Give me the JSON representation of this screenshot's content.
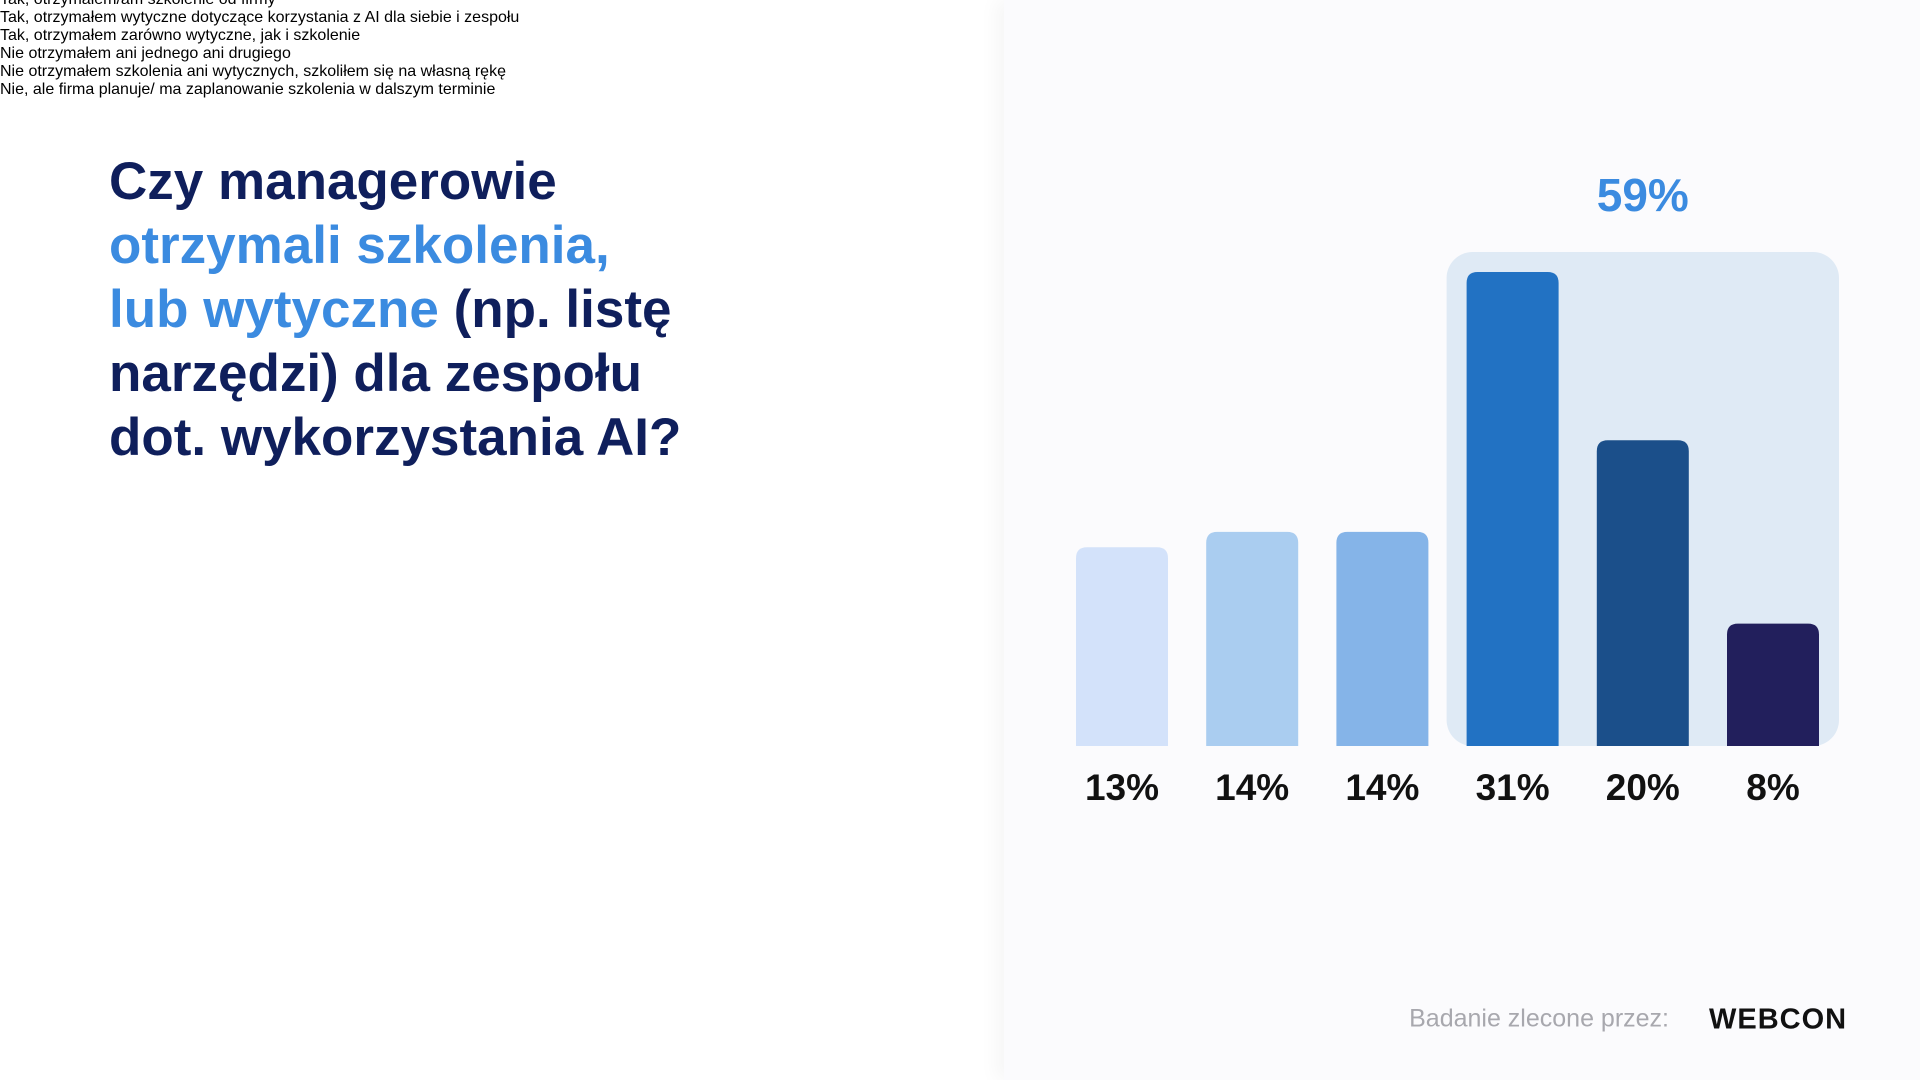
{
  "chart_data": {
    "type": "bar",
    "title": [
      [
        {
          "text": "Czy managerowie",
          "highlight": false
        }
      ],
      [
        {
          "text": "otrzymali szkolenia,",
          "highlight": true
        }
      ],
      [
        {
          "text": "lub wytyczne",
          "highlight": true
        },
        {
          "text": " (np. listę",
          "highlight": false
        }
      ],
      [
        {
          "text": "narzędzi) dla zespołu",
          "highlight": false
        }
      ],
      [
        {
          "text": "dot. wykorzystania AI?",
          "highlight": false
        }
      ]
    ],
    "title_color": "#0f1f5c",
    "highlight_color": "#3b8be0",
    "categories": [
      "Tak, otrzymałem/am szkolenie od firmy",
      "Tak, otrzymałem wytyczne dotyczące korzystania z AI dla siebie i zespołu",
      "Tak, otrzymałem zarówno wytyczne, jak i szkolenie",
      "Nie otrzymałem ani jednego ani drugiego",
      "Nie otrzymałem szkolenia ani wytycznych, szkoliłem się na własną rękę",
      "Nie, ale firma planuje/ ma zaplanowanie szkolenia w dalszym terminie"
    ],
    "values": [
      13,
      14,
      14,
      31,
      20,
      8
    ],
    "value_labels": [
      "13%",
      "14%",
      "14%",
      "31%",
      "20%",
      "8%"
    ],
    "colors": [
      "#d3e2fa",
      "#aacdf0",
      "#85b4e8",
      "#2272c3",
      "#1b4f8a",
      "#221f5c"
    ],
    "annotation": {
      "value": 59,
      "label": "59%"
    },
    "footer": {
      "source_label": "Badanie zlecone przez:",
      "logo": "WEBCON"
    }
  }
}
